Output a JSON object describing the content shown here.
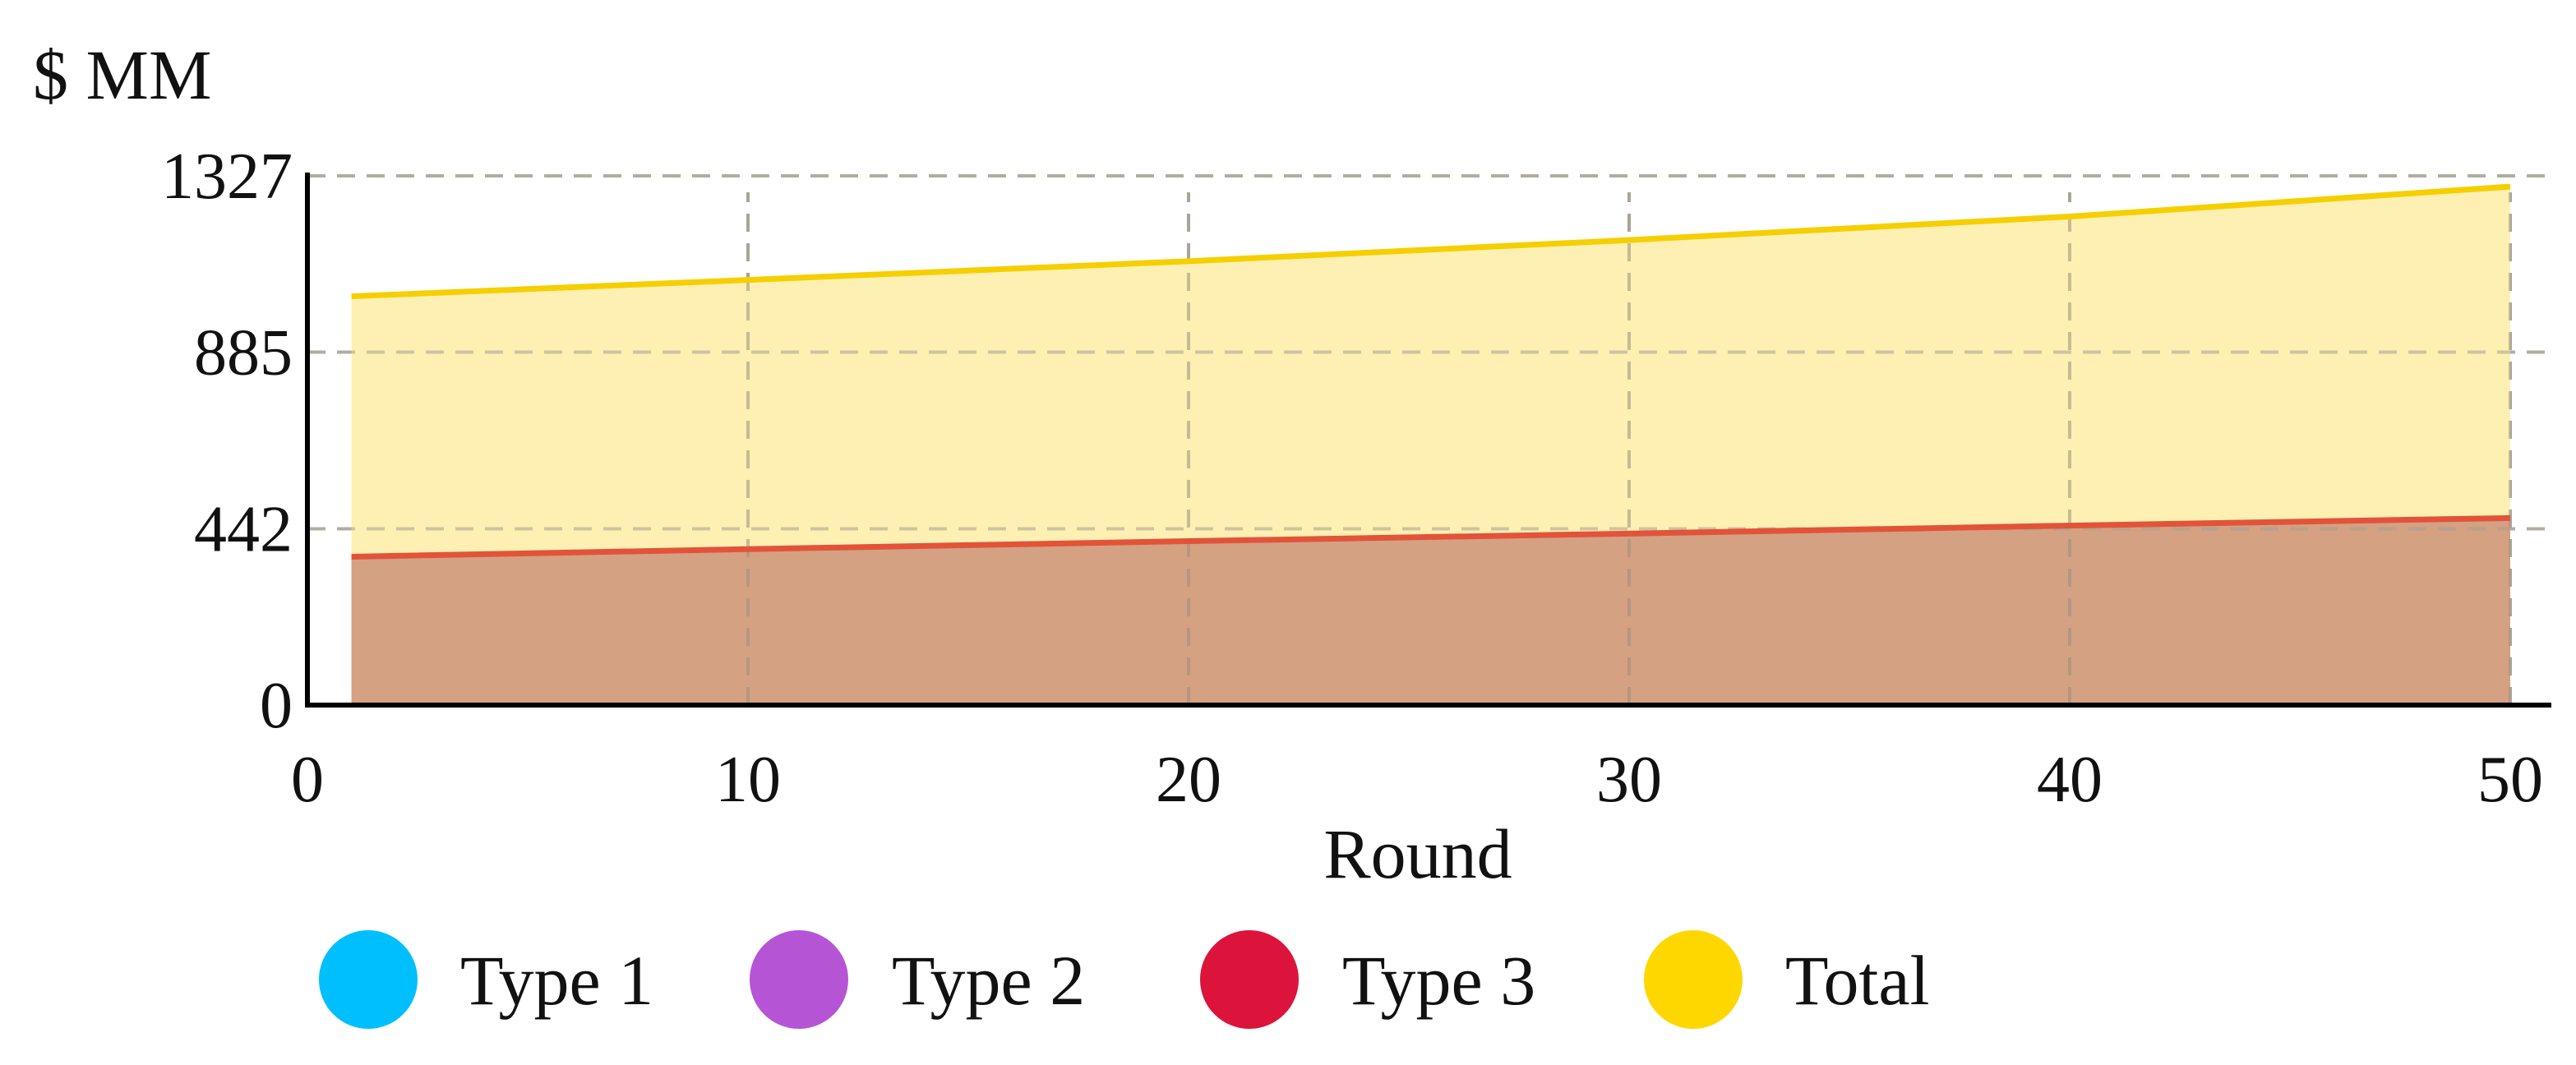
{
  "chart_data": {
    "type": "area",
    "ylabel": "$ MM",
    "xlabel": "Round",
    "xlim": [
      0,
      50
    ],
    "ylim": [
      0,
      1327
    ],
    "x_ticks": [
      "0",
      "10",
      "20",
      "30",
      "40",
      "50"
    ],
    "y_ticks": [
      "0",
      "442",
      "885",
      "1327"
    ],
    "grid": "dashed",
    "legend": "bottom",
    "legend_entries": [
      {
        "name": "Type 1",
        "color": "#00bfff"
      },
      {
        "name": "Type 2",
        "color": "#b555d6"
      },
      {
        "name": "Type 3",
        "color": "#dc143c"
      },
      {
        "name": "Total",
        "color": "#ffd700"
      }
    ],
    "series": [
      {
        "name": "Type 3",
        "color": "#e2533a",
        "fill": "#d4a183",
        "x": [
          1,
          10,
          20,
          30,
          40,
          50
        ],
        "values": [
          372,
          391,
          411,
          430,
          450,
          469
        ]
      },
      {
        "name": "Total",
        "color": "#f5cf00",
        "fill": "#fdf0b2",
        "x": [
          1,
          10,
          20,
          30,
          40,
          50
        ],
        "values": [
          1025,
          1066,
          1113,
          1166,
          1225,
          1300
        ]
      }
    ]
  }
}
